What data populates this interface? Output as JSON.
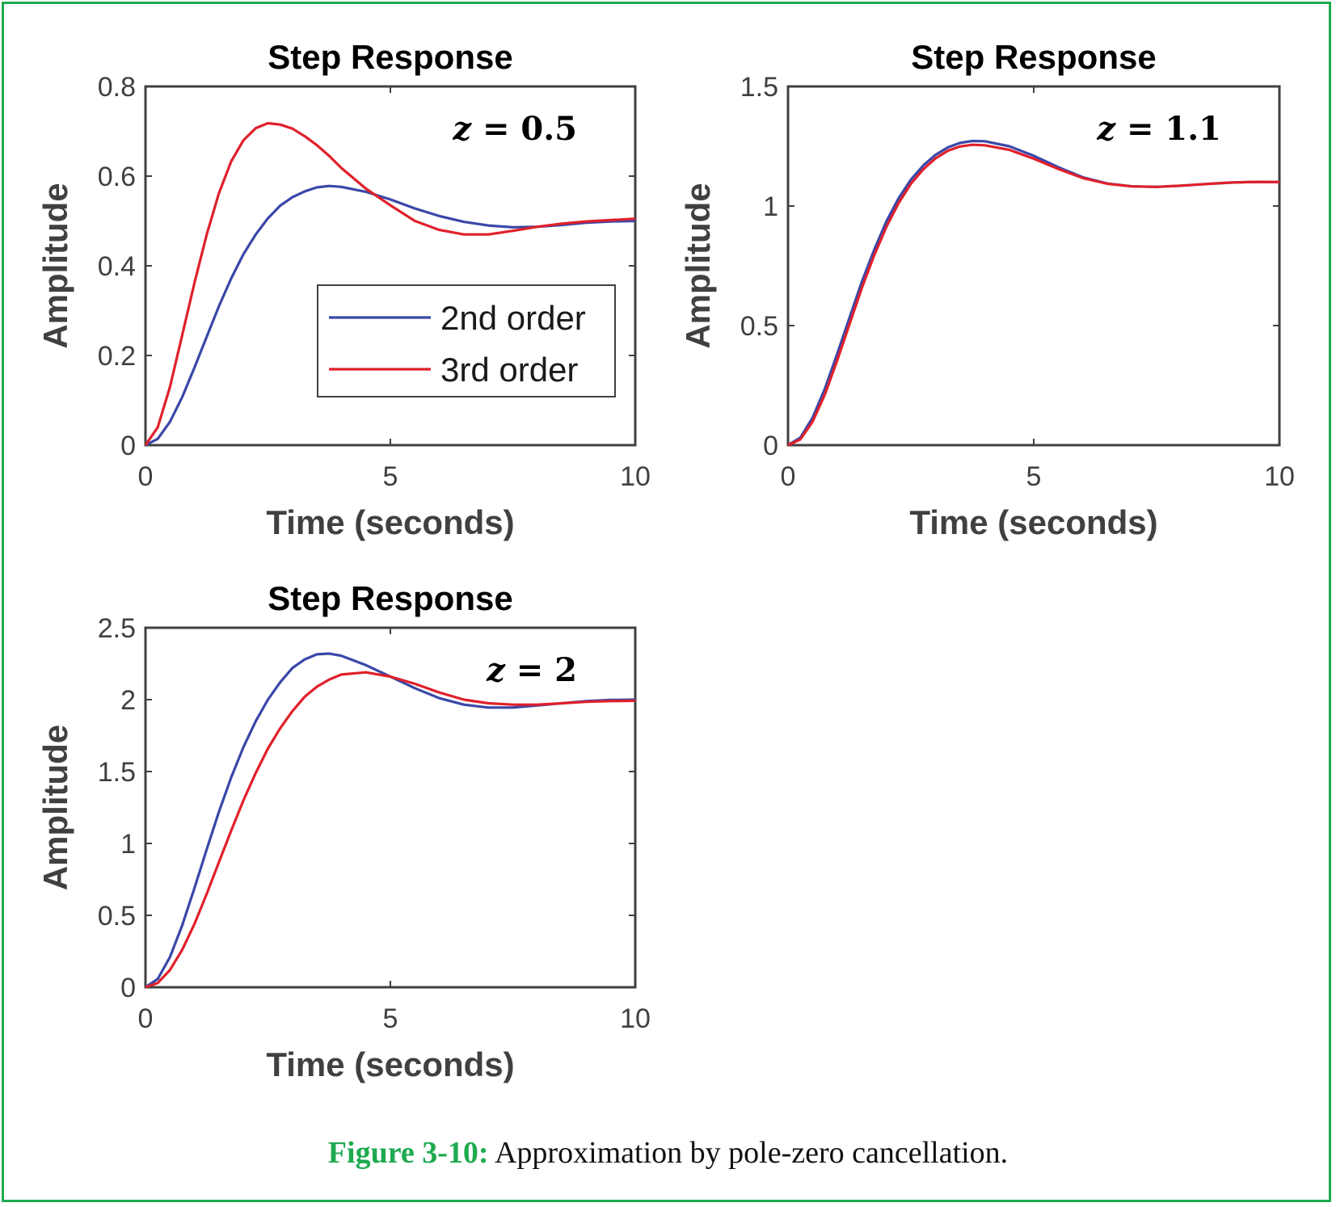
{
  "colors": {
    "frame": "#1faa50",
    "series_2nd": "#3a47a8",
    "series_3rd": "#e0202a",
    "axes": "#404040"
  },
  "caption": {
    "label": "Figure 3-10:",
    "text": " Approximation by pole-zero cancellation."
  },
  "chart_data": [
    {
      "type": "line",
      "title": "Step Response",
      "xlabel": "Time (seconds)",
      "ylabel": "Amplitude",
      "xlim": [
        0,
        10
      ],
      "ylim": [
        0,
        0.8
      ],
      "xticks": [
        "0",
        "5",
        "10"
      ],
      "yticks": [
        "0",
        "0.2",
        "0.4",
        "0.6",
        "0.8"
      ],
      "annotation": {
        "var": "z",
        "eq": " = ",
        "val": "0.5"
      },
      "legend": {
        "show": true,
        "placement": "center-right"
      },
      "series": [
        {
          "name": "2nd order",
          "x": [
            0,
            0.25,
            0.5,
            0.75,
            1,
            1.25,
            1.5,
            1.75,
            2,
            2.25,
            2.5,
            2.75,
            3,
            3.25,
            3.5,
            3.75,
            4,
            4.5,
            5,
            5.5,
            6,
            6.5,
            7,
            7.5,
            8,
            8.5,
            9,
            9.5,
            10
          ],
          "y": [
            0,
            0.014,
            0.052,
            0.107,
            0.173,
            0.242,
            0.31,
            0.372,
            0.426,
            0.47,
            0.506,
            0.534,
            0.553,
            0.566,
            0.575,
            0.578,
            0.576,
            0.565,
            0.548,
            0.528,
            0.511,
            0.498,
            0.49,
            0.486,
            0.487,
            0.491,
            0.496,
            0.499,
            0.5
          ]
        },
        {
          "name": "3rd order",
          "x": [
            0,
            0.25,
            0.5,
            0.75,
            1,
            1.25,
            1.5,
            1.75,
            2,
            2.25,
            2.5,
            2.75,
            3,
            3.25,
            3.5,
            3.75,
            4,
            4.5,
            5,
            5.5,
            6,
            6.5,
            7,
            7.5,
            8,
            8.5,
            9,
            9.5,
            10
          ],
          "y": [
            0,
            0.04,
            0.13,
            0.245,
            0.362,
            0.47,
            0.562,
            0.633,
            0.68,
            0.707,
            0.718,
            0.715,
            0.706,
            0.689,
            0.669,
            0.645,
            0.618,
            0.572,
            0.535,
            0.5,
            0.48,
            0.47,
            0.47,
            0.478,
            0.487,
            0.494,
            0.499,
            0.502,
            0.505
          ]
        }
      ]
    },
    {
      "type": "line",
      "title": "Step Response",
      "xlabel": "Time (seconds)",
      "ylabel": "Amplitude",
      "xlim": [
        0,
        10
      ],
      "ylim": [
        0,
        1.5
      ],
      "xticks": [
        "0",
        "5",
        "10"
      ],
      "yticks": [
        "0",
        "0.5",
        "1",
        "1.5"
      ],
      "annotation": {
        "var": "z",
        "eq": " = ",
        "val": "1.1"
      },
      "legend": {
        "show": false
      },
      "series": [
        {
          "name": "2nd order",
          "x": [
            0,
            0.25,
            0.5,
            0.75,
            1,
            1.25,
            1.5,
            1.75,
            2,
            2.25,
            2.5,
            2.75,
            3,
            3.25,
            3.5,
            3.75,
            4,
            4.5,
            5,
            5.5,
            6,
            6.5,
            7,
            7.5,
            8,
            8.5,
            9,
            9.5,
            10
          ],
          "y": [
            0,
            0.031,
            0.115,
            0.236,
            0.381,
            0.532,
            0.682,
            0.815,
            0.935,
            1.032,
            1.11,
            1.169,
            1.214,
            1.245,
            1.264,
            1.272,
            1.271,
            1.25,
            1.21,
            1.162,
            1.12,
            1.094,
            1.082,
            1.08,
            1.085,
            1.092,
            1.098,
            1.101,
            1.1
          ]
        },
        {
          "name": "3rd order",
          "x": [
            0,
            0.25,
            0.5,
            0.75,
            1,
            1.25,
            1.5,
            1.75,
            2,
            2.25,
            2.5,
            2.75,
            3,
            3.25,
            3.5,
            3.75,
            4,
            4.5,
            5,
            5.5,
            6,
            6.5,
            7,
            7.5,
            8,
            8.5,
            9,
            9.5,
            10
          ],
          "y": [
            0,
            0.024,
            0.098,
            0.212,
            0.354,
            0.505,
            0.656,
            0.792,
            0.912,
            1.012,
            1.093,
            1.153,
            1.199,
            1.231,
            1.249,
            1.256,
            1.254,
            1.235,
            1.198,
            1.155,
            1.117,
            1.093,
            1.082,
            1.08,
            1.085,
            1.092,
            1.098,
            1.101,
            1.1
          ]
        }
      ]
    },
    {
      "type": "line",
      "title": "Step Response",
      "xlabel": "Time (seconds)",
      "ylabel": "Amplitude",
      "xlim": [
        0,
        10
      ],
      "ylim": [
        0,
        2.5
      ],
      "xticks": [
        "0",
        "5",
        "10"
      ],
      "yticks": [
        "0",
        "0.5",
        "1",
        "1.5",
        "2",
        "2.5"
      ],
      "annotation": {
        "var": "z",
        "eq": " = ",
        "val": "2"
      },
      "legend": {
        "show": false
      },
      "series": [
        {
          "name": "2nd order",
          "x": [
            0,
            0.25,
            0.5,
            0.75,
            1,
            1.25,
            1.5,
            1.75,
            2,
            2.25,
            2.5,
            2.75,
            3,
            3.25,
            3.5,
            3.75,
            4,
            4.5,
            5,
            5.5,
            6,
            6.5,
            7,
            7.5,
            8,
            8.5,
            9,
            9.5,
            10
          ],
          "y": [
            0,
            0.058,
            0.21,
            0.43,
            0.69,
            0.96,
            1.22,
            1.46,
            1.67,
            1.85,
            2.0,
            2.12,
            2.22,
            2.28,
            2.315,
            2.32,
            2.305,
            2.24,
            2.16,
            2.08,
            2.01,
            1.965,
            1.945,
            1.945,
            1.96,
            1.975,
            1.99,
            1.998,
            2.0
          ]
        },
        {
          "name": "3rd order",
          "x": [
            0,
            0.25,
            0.5,
            0.75,
            1,
            1.25,
            1.5,
            1.75,
            2,
            2.25,
            2.5,
            2.75,
            3,
            3.25,
            3.5,
            3.75,
            4,
            4.5,
            5,
            5.5,
            6,
            6.5,
            7,
            7.5,
            8,
            8.5,
            9,
            9.5,
            10
          ],
          "y": [
            0,
            0.03,
            0.12,
            0.26,
            0.44,
            0.65,
            0.87,
            1.09,
            1.3,
            1.49,
            1.66,
            1.8,
            1.92,
            2.02,
            2.09,
            2.14,
            2.175,
            2.19,
            2.16,
            2.11,
            2.05,
            2.0,
            1.975,
            1.965,
            1.965,
            1.975,
            1.985,
            1.99,
            1.992
          ]
        }
      ]
    }
  ]
}
